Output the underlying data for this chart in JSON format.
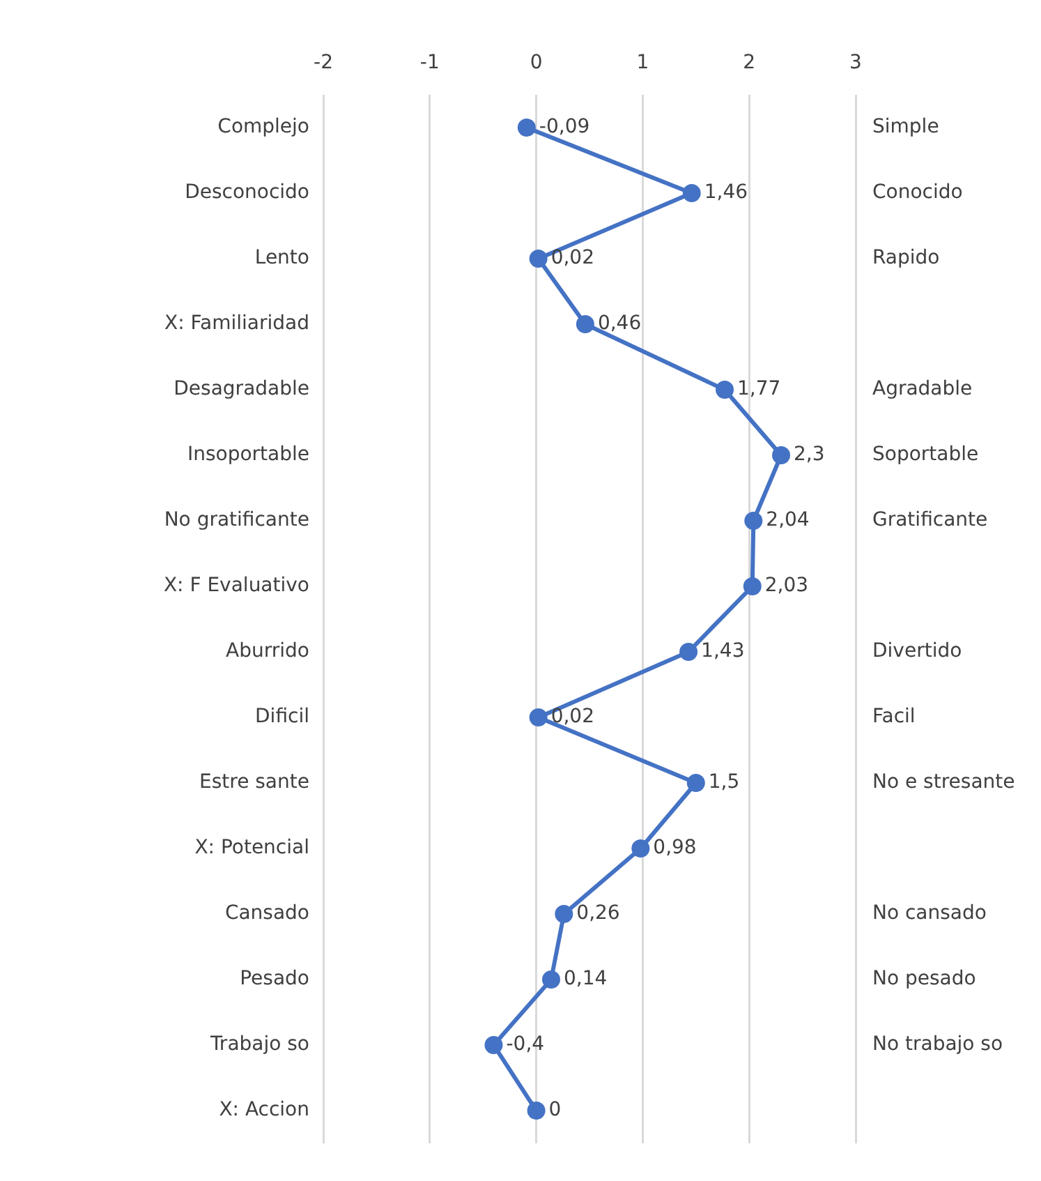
{
  "chart_data": {
    "type": "line",
    "orientation": "horizontal",
    "categories": [
      "Complejo",
      "Desconocido",
      "Lento",
      "X: Familiaridad",
      "Desagradable",
      "Insoportable",
      "No gratificante",
      "X: F Evaluativo",
      "Aburrido",
      "Dificil",
      "Estre sante",
      "X: Potencial",
      "Cansado",
      "Pesado",
      "Trabajo so",
      "X: Accion"
    ],
    "y2_categories": [
      "Simple",
      "Conocido",
      "Rapido",
      null,
      "Agradable",
      "Soportable",
      "Gratificante",
      null,
      "Divertido",
      "Facil",
      "No e stresante",
      null,
      "No cansado",
      "No pesado",
      "No trabajo so",
      null
    ],
    "series": [
      {
        "color": "#4472c4",
        "values": [
          -0.09,
          1.46,
          0.02,
          0.46,
          1.77,
          2.3,
          2.04,
          2.03,
          1.43,
          0.02,
          1.5,
          0.98,
          0.26,
          0.14,
          -0.4,
          0
        ],
        "value_labels": [
          "-0,09",
          "1,46",
          "0,02",
          "0,46",
          "1,77",
          "2,3",
          "2,04",
          "2,03",
          "1,43",
          "0,02",
          "1,5",
          "0,98",
          "0,26",
          "0,14",
          "-0,4",
          "0"
        ]
      }
    ],
    "xlim": [
      -2,
      3
    ],
    "xticks": [
      -2,
      -1,
      0,
      1,
      2,
      3
    ],
    "grid": "x",
    "marker": "circle",
    "line_style": "solid",
    "legend": false
  }
}
